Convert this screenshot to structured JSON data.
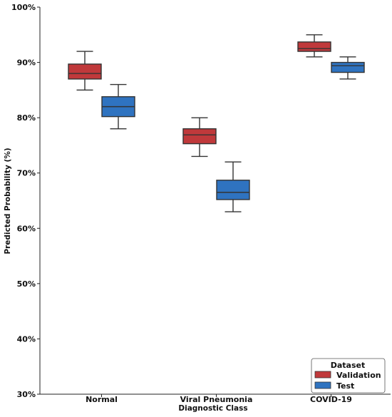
{
  "chart_data": {
    "type": "box",
    "title": "",
    "xlabel": "Diagnostic Class",
    "ylabel": "Predicted Probability (%)",
    "ylim": [
      30,
      100
    ],
    "yticks": [
      30,
      40,
      50,
      60,
      70,
      80,
      90,
      100
    ],
    "ytick_suffix": "%",
    "categories": [
      "Normal",
      "Viral Pneumonia",
      "COVID-19"
    ],
    "grid": false,
    "legend": {
      "title": "Dataset",
      "position": "bottom-right"
    },
    "series": [
      {
        "name": "Validation",
        "color": "#c0393b",
        "boxes": [
          {
            "min": 85,
            "q1": 87,
            "median": 88,
            "q3": 89.7,
            "max": 92
          },
          {
            "min": 73,
            "q1": 75.3,
            "median": 76.9,
            "q3": 78,
            "max": 80
          },
          {
            "min": 91,
            "q1": 92,
            "median": 92.5,
            "q3": 93.7,
            "max": 95
          }
        ]
      },
      {
        "name": "Test",
        "color": "#2f73c0",
        "boxes": [
          {
            "min": 78,
            "q1": 80.2,
            "median": 82,
            "q3": 83.8,
            "max": 86
          },
          {
            "min": 63,
            "q1": 65.2,
            "median": 66.5,
            "q3": 68.7,
            "max": 72
          },
          {
            "min": 87,
            "q1": 88.2,
            "median": 89.4,
            "q3": 90,
            "max": 91
          }
        ]
      }
    ]
  }
}
